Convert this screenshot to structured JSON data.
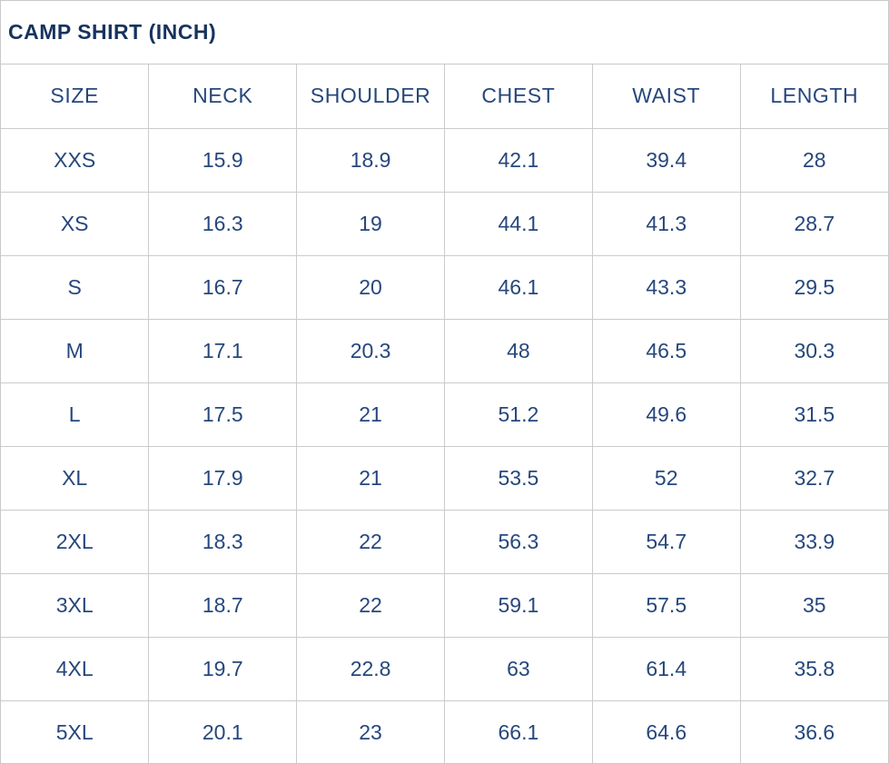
{
  "title": "CAMP SHIRT (INCH)",
  "colors": {
    "title_text": "#17335e",
    "cell_text": "#26477c",
    "border": "#cbcbcb",
    "background": "#ffffff"
  },
  "table": {
    "columns": [
      "SIZE",
      "NECK",
      "SHOULDER",
      "CHEST",
      "WAIST",
      "LENGTH"
    ],
    "rows": [
      [
        "XXS",
        "15.9",
        "18.9",
        "42.1",
        "39.4",
        "28"
      ],
      [
        "XS",
        "16.3",
        "19",
        "44.1",
        "41.3",
        "28.7"
      ],
      [
        "S",
        "16.7",
        "20",
        "46.1",
        "43.3",
        "29.5"
      ],
      [
        "M",
        "17.1",
        "20.3",
        "48",
        "46.5",
        "30.3"
      ],
      [
        "L",
        "17.5",
        "21",
        "51.2",
        "49.6",
        "31.5"
      ],
      [
        "XL",
        "17.9",
        "21",
        "53.5",
        "52",
        "32.7"
      ],
      [
        "2XL",
        "18.3",
        "22",
        "56.3",
        "54.7",
        "33.9"
      ],
      [
        "3XL",
        "18.7",
        "22",
        "59.1",
        "57.5",
        "35"
      ],
      [
        "4XL",
        "19.7",
        "22.8",
        "63",
        "61.4",
        "35.8"
      ],
      [
        "5XL",
        "20.1",
        "23",
        "66.1",
        "64.6",
        "36.6"
      ]
    ]
  }
}
